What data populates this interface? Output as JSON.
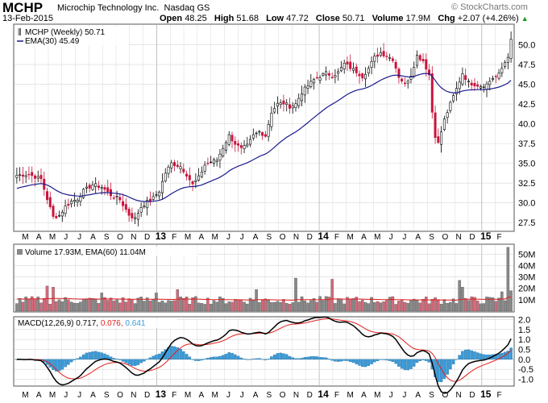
{
  "header": {
    "symbol": "MCHP",
    "company": "Microchip Technology Inc.",
    "exchange": "Nasdaq GS",
    "date": "13-Feb-2015",
    "open_label": "Open",
    "open": "48.25",
    "high_label": "High",
    "high": "51.68",
    "low_label": "Low",
    "low": "47.72",
    "close_label": "Close",
    "close": "50.71",
    "volume_label": "Volume",
    "volume": "17.9M",
    "chg_label": "Chg",
    "chg": "+2.07 (+4.26%)",
    "brand": "© StockCharts.com"
  },
  "colors": {
    "up": "#000000",
    "down": "#c8143c",
    "ema": "#1a1a8c",
    "macd": "#000000",
    "signal": "#e02020",
    "hist": "#3a9ad8",
    "vol_up": "#888888",
    "vol_down": "#d46a7a",
    "grid": "#d8d8d8"
  },
  "chart_data": [
    {
      "type": "candlestick",
      "title": "MCHP (Weekly) 50.71",
      "legend": [
        "MCHP (Weekly) 50.71",
        "EMA(30) 45.49"
      ],
      "ylim": [
        26.5,
        52.5
      ],
      "yticks": [
        "27.5",
        "30.0",
        "32.5",
        "35.0",
        "37.5",
        "40.0",
        "42.5",
        "45.0",
        "47.5",
        "50.0"
      ],
      "x_labels": [
        "M",
        "A",
        "M",
        "J",
        "J",
        "A",
        "S",
        "O",
        "N",
        "D",
        "13",
        "F",
        "M",
        "A",
        "M",
        "J",
        "J",
        "A",
        "S",
        "O",
        "N",
        "D",
        "14",
        "F",
        "M",
        "A",
        "M",
        "J",
        "J",
        "A",
        "S",
        "O",
        "N",
        "D",
        "15",
        "F"
      ],
      "close_anchors": [
        [
          0,
          33.5
        ],
        [
          4,
          33.6
        ],
        [
          8,
          33.0
        ],
        [
          10,
          30.5
        ],
        [
          12,
          28.2
        ],
        [
          14,
          28.4
        ],
        [
          16,
          29.5
        ],
        [
          18,
          30.2
        ],
        [
          20,
          30.5
        ],
        [
          22,
          31.5
        ],
        [
          25,
          32.3
        ],
        [
          28,
          32.0
        ],
        [
          31,
          31.0
        ],
        [
          34,
          30.4
        ],
        [
          37,
          28.5
        ],
        [
          39,
          28.0
        ],
        [
          41,
          29.5
        ],
        [
          43,
          30.1
        ],
        [
          45,
          30.6
        ],
        [
          47,
          31.5
        ],
        [
          49,
          33.8
        ],
        [
          51,
          35.0
        ],
        [
          54,
          34.6
        ],
        [
          56,
          33.6
        ],
        [
          58,
          32.3
        ],
        [
          60,
          33.2
        ],
        [
          62,
          34.8
        ],
        [
          64,
          35.2
        ],
        [
          66,
          35.4
        ],
        [
          68,
          37.0
        ],
        [
          70,
          38.5
        ],
        [
          72,
          37.5
        ],
        [
          74,
          36.8
        ],
        [
          76,
          37.2
        ],
        [
          78,
          38.5
        ],
        [
          80,
          39.0
        ],
        [
          82,
          38.5
        ],
        [
          84,
          41.5
        ],
        [
          86,
          42.5
        ],
        [
          88,
          42.6
        ],
        [
          90,
          42.2
        ],
        [
          92,
          42.5
        ],
        [
          94,
          44.0
        ],
        [
          96,
          44.8
        ],
        [
          98,
          45.6
        ],
        [
          100,
          46.0
        ],
        [
          102,
          46.4
        ],
        [
          104,
          46.1
        ],
        [
          106,
          46.5
        ],
        [
          108,
          47.6
        ],
        [
          110,
          47.1
        ],
        [
          112,
          46.6
        ],
        [
          114,
          46.0
        ],
        [
          116,
          47.0
        ],
        [
          118,
          48.4
        ],
        [
          120,
          49.0
        ],
        [
          122,
          48.6
        ],
        [
          124,
          48.2
        ],
        [
          126,
          46.0
        ],
        [
          128,
          45.0
        ],
        [
          130,
          46.2
        ],
        [
          132,
          48.6
        ],
        [
          134,
          48.0
        ],
        [
          136,
          46.2
        ],
        [
          137,
          41.5
        ],
        [
          138,
          38.5
        ],
        [
          139,
          37.5
        ],
        [
          141,
          40.5
        ],
        [
          143,
          42.5
        ],
        [
          145,
          44.4
        ],
        [
          147,
          46.4
        ],
        [
          149,
          45.2
        ],
        [
          151,
          45.0
        ],
        [
          153,
          44.8
        ],
        [
          155,
          45.0
        ],
        [
          157,
          45.8
        ],
        [
          159,
          46.2
        ],
        [
          161,
          47.8
        ],
        [
          162,
          48.6
        ],
        [
          163,
          50.71
        ]
      ],
      "ema_period": 30,
      "ema_last": 45.49
    },
    {
      "type": "bar",
      "title": "Volume 17.93M, EMA(60) 11.04M",
      "ylim": [
        0,
        58
      ],
      "yticks": [
        "10M",
        "20M",
        "30M",
        "40M",
        "50M"
      ],
      "typical_volume_millions": 10,
      "spikes": [
        [
          10,
          22
        ],
        [
          12,
          21
        ],
        [
          28,
          16
        ],
        [
          46,
          16
        ],
        [
          53,
          19
        ],
        [
          79,
          19
        ],
        [
          92,
          29
        ],
        [
          104,
          28
        ],
        [
          146,
          27
        ],
        [
          147,
          21
        ],
        [
          160,
          17
        ],
        [
          162,
          56
        ],
        [
          163,
          18
        ]
      ],
      "ema_last_millions": 11.04
    },
    {
      "type": "line",
      "title": "MACD(12,26,9) 0.717, 0.076, 0.641",
      "series": [
        {
          "name": "MACD(12,26,9)",
          "last": 0.717
        },
        {
          "name": "Signal",
          "last": 0.076
        },
        {
          "name": "Histogram",
          "last": 0.641
        }
      ],
      "ylim": [
        -1.3,
        2.1
      ],
      "yticks": [
        "2.0",
        "1.5",
        "1.0",
        "0.5",
        "0.0",
        "-0.5",
        "-1.0"
      ]
    }
  ]
}
